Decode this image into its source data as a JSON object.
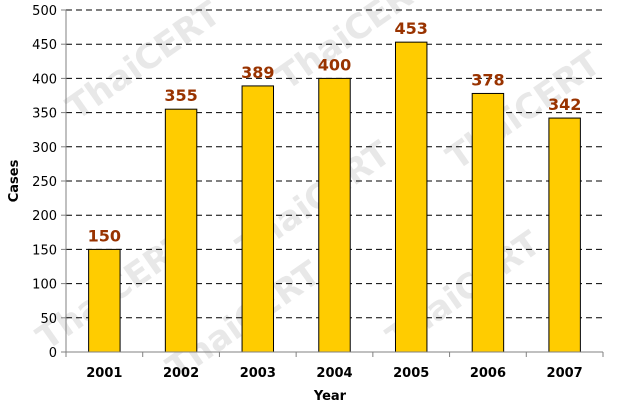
{
  "chart_data": {
    "type": "bar",
    "title": "",
    "xlabel": "Year",
    "ylabel": "Cases",
    "categories": [
      "2001",
      "2002",
      "2003",
      "2004",
      "2005",
      "2006",
      "2007"
    ],
    "values": [
      150,
      355,
      389,
      400,
      453,
      378,
      342
    ],
    "ylim": [
      0,
      500
    ],
    "yticks": [
      0,
      50,
      100,
      150,
      200,
      250,
      300,
      350,
      400,
      450,
      500
    ],
    "grid": true,
    "legend": "none",
    "watermark_text": "ThaiCERT",
    "colors": {
      "bar_fill": "#FFCC00",
      "bar_stroke": "#000000",
      "data_label": "#993300",
      "grid": "#000000",
      "axis": "#808080",
      "watermark": "#d9d9d9"
    }
  }
}
